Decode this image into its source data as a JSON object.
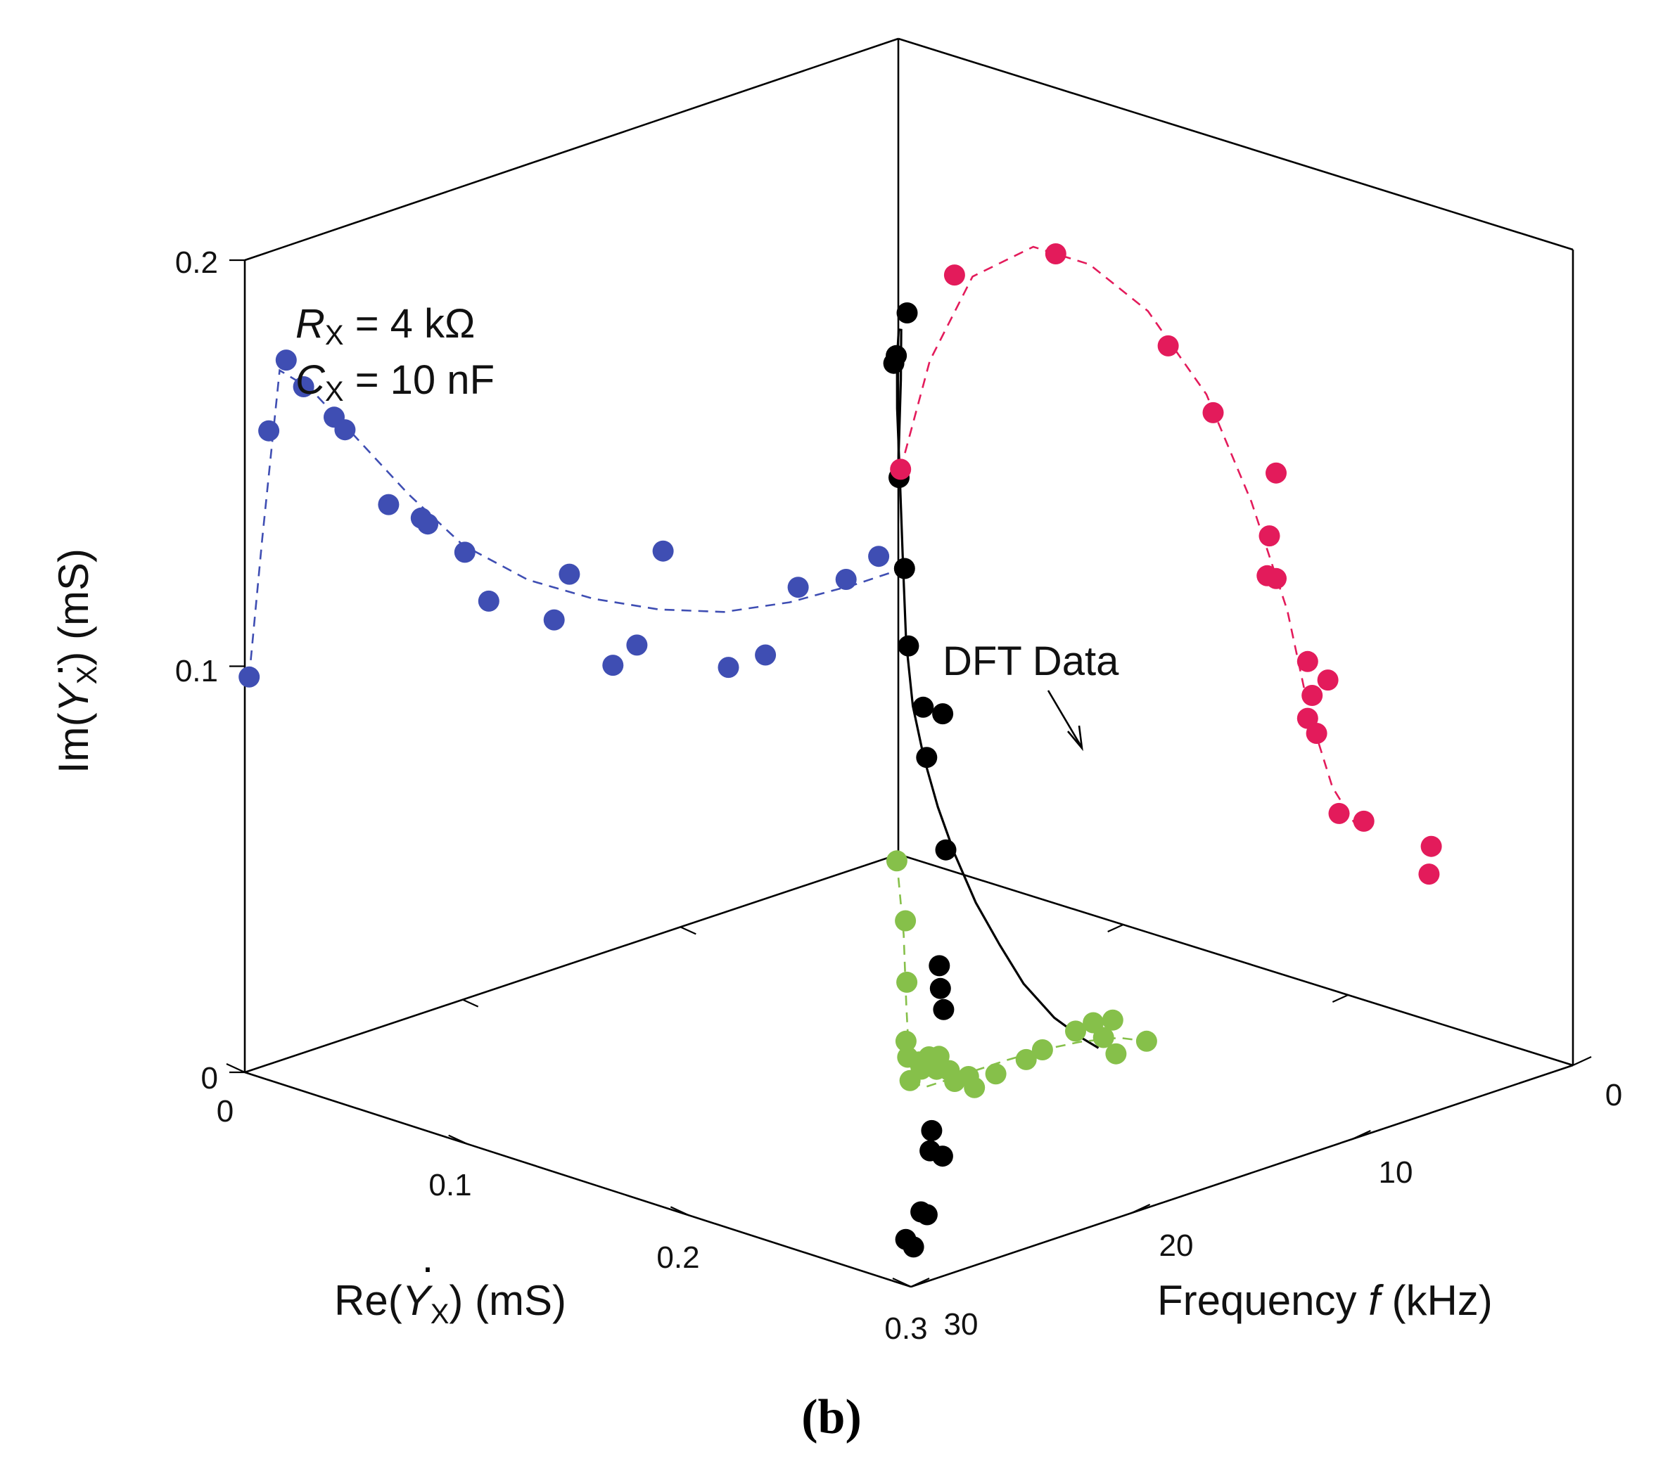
{
  "chart_data": {
    "type": "scatter",
    "projection": "3d",
    "panel_label": "(b)",
    "annotations": {
      "rx": "R",
      "rx_sub": "X",
      "rx_rest": " = 4 kΩ",
      "cx": "C",
      "cx_sub": "X",
      "cx_rest": " = 10 nF",
      "dft": "DFT Data"
    },
    "axes": {
      "re": {
        "label_pre": "Re(",
        "label_sym": "Y",
        "label_sub": "X",
        "label_post": ") (mS)",
        "range": [
          0,
          0.3
        ],
        "ticks": [
          "0",
          "0.1",
          "0.2",
          "0.3"
        ]
      },
      "im": {
        "label_pre": "Im(",
        "label_sym": "Y",
        "label_sub": "X",
        "label_post": ") (mS)",
        "range": [
          0,
          0.2
        ],
        "ticks": [
          "0",
          "0.1",
          "0.2"
        ]
      },
      "freq": {
        "label_pre": "Frequency ",
        "label_sym": "f",
        "label_post": " (kHz)",
        "range": [
          0,
          30
        ],
        "ticks": [
          "0",
          "10",
          "20",
          "30"
        ]
      }
    },
    "colors": {
      "dft": "#000000",
      "projection_re_f": "#86c04a",
      "projection_im_re": "#3f4eb3",
      "projection_im_f": "#e31b5b"
    },
    "series": [
      {
        "role": "dft",
        "note": "points are [Re(mS), Im(mS), f(kHz)]",
        "points": [
          [
            0.04,
            0.15,
            27.5
          ],
          [
            0.06,
            0.145,
            28.0
          ],
          [
            0.085,
            0.152,
            27.2
          ],
          [
            0.11,
            0.134,
            25.2
          ],
          [
            0.125,
            0.118,
            23.5
          ],
          [
            0.14,
            0.105,
            21.9
          ],
          [
            0.128,
            0.088,
            20.5
          ],
          [
            0.133,
            0.078,
            19.6
          ],
          [
            0.09,
            0.076,
            20.3
          ],
          [
            0.115,
            0.052,
            18.1
          ],
          [
            0.165,
            0.04,
            14.8
          ],
          [
            0.175,
            0.038,
            13.6
          ],
          [
            0.18,
            0.035,
            12.5
          ],
          [
            0.21,
            0.03,
            10.2
          ],
          [
            0.23,
            0.02,
            8.4
          ],
          [
            0.24,
            0.018,
            7.2
          ],
          [
            0.22,
            0.012,
            7.6
          ],
          [
            0.26,
            0.008,
            5.9
          ],
          [
            0.25,
            0.005,
            6.2
          ],
          [
            0.275,
            0.003,
            4.9
          ],
          [
            0.275,
            0.004,
            6.9
          ]
        ]
      },
      {
        "role": "dft-fit",
        "style": "solid",
        "points": [
          [
            0.004,
            0.095,
            29.9
          ],
          [
            0.015,
            0.123,
            29.2
          ],
          [
            0.03,
            0.141,
            28.6
          ],
          [
            0.055,
            0.15,
            27.9
          ],
          [
            0.08,
            0.152,
            27.0
          ],
          [
            0.1,
            0.147,
            26.0
          ],
          [
            0.118,
            0.136,
            24.6
          ],
          [
            0.132,
            0.122,
            23.3
          ],
          [
            0.141,
            0.106,
            22.2
          ],
          [
            0.143,
            0.092,
            21.0
          ],
          [
            0.14,
            0.08,
            19.5
          ],
          [
            0.134,
            0.068,
            17.8
          ],
          [
            0.125,
            0.056,
            16.0
          ],
          [
            0.112,
            0.043,
            14.0
          ],
          [
            0.096,
            0.031,
            12.0
          ],
          [
            0.08,
            0.02,
            10.2
          ],
          [
            0.06,
            0.01,
            8.0
          ],
          [
            0.04,
            0.003,
            6.2
          ],
          [
            0.03,
            0.0,
            5.3
          ]
        ]
      },
      {
        "role": "projection-re-f",
        "points": [
          [
            0.005,
            0,
            30
          ],
          [
            0.04,
            0,
            27.7
          ],
          [
            0.08,
            0,
            25.7
          ],
          [
            0.12,
            0,
            23.6
          ],
          [
            0.13,
            0,
            22.7
          ],
          [
            0.145,
            0,
            21.3
          ],
          [
            0.128,
            0,
            21.1
          ],
          [
            0.132,
            0,
            20.5
          ],
          [
            0.12,
            0,
            20.2
          ],
          [
            0.115,
            0,
            19.1
          ],
          [
            0.125,
            0,
            18.7
          ],
          [
            0.12,
            0,
            17.2
          ],
          [
            0.125,
            0,
            16.0
          ],
          [
            0.115,
            0,
            14.8
          ],
          [
            0.12,
            0,
            13.5
          ],
          [
            0.1,
            0,
            12.2
          ],
          [
            0.075,
            0,
            10.3
          ],
          [
            0.06,
            0,
            9.5
          ],
          [
            0.03,
            0,
            8.0
          ],
          [
            0.015,
            0,
            7.2
          ],
          [
            0.003,
            0,
            6.0
          ],
          [
            0.02,
            0,
            5.6
          ],
          [
            0.025,
            0,
            3.7
          ],
          [
            0.0,
            0,
            2.5
          ]
        ]
      },
      {
        "role": "projection-re-f-fit",
        "style": "dashed",
        "points": [
          [
            0.005,
            0,
            30
          ],
          [
            0.05,
            0,
            27.5
          ],
          [
            0.095,
            0,
            25.0
          ],
          [
            0.13,
            0,
            22.5
          ],
          [
            0.145,
            0,
            20.5
          ],
          [
            0.142,
            0,
            19.0
          ],
          [
            0.128,
            0,
            17.0
          ],
          [
            0.108,
            0,
            14.5
          ],
          [
            0.085,
            0,
            12.0
          ],
          [
            0.06,
            0,
            9.5
          ],
          [
            0.035,
            0,
            7.0
          ],
          [
            0.012,
            0,
            4.5
          ],
          [
            0.0,
            0,
            2.5
          ]
        ]
      },
      {
        "role": "projection-im-re",
        "points": [
          [
            0.002,
            0.097,
            30
          ],
          [
            0.011,
            0.156,
            30
          ],
          [
            0.019,
            0.172,
            30
          ],
          [
            0.027,
            0.164,
            30
          ],
          [
            0.041,
            0.154,
            30
          ],
          [
            0.046,
            0.15,
            30
          ],
          [
            0.066,
            0.128,
            30
          ],
          [
            0.081,
            0.122,
            30
          ],
          [
            0.084,
            0.12,
            30
          ],
          [
            0.101,
            0.11,
            30
          ],
          [
            0.112,
            0.096,
            30
          ],
          [
            0.142,
            0.086,
            30
          ],
          [
            0.149,
            0.096,
            30
          ],
          [
            0.169,
            0.07,
            30
          ],
          [
            0.18,
            0.073,
            30
          ],
          [
            0.192,
            0.094,
            30
          ],
          [
            0.222,
            0.06,
            30
          ],
          [
            0.239,
            0.06,
            30
          ],
          [
            0.254,
            0.074,
            30
          ],
          [
            0.276,
            0.072,
            30
          ],
          [
            0.291,
            0.075,
            30
          ]
        ]
      },
      {
        "role": "projection-im-re-fit",
        "style": "dashed",
        "points": [
          [
            0.002,
            0.097,
            30
          ],
          [
            0.008,
            0.13,
            30
          ],
          [
            0.016,
            0.17,
            30
          ],
          [
            0.03,
            0.163,
            30
          ],
          [
            0.05,
            0.148,
            30
          ],
          [
            0.075,
            0.129,
            30
          ],
          [
            0.1,
            0.112,
            30
          ],
          [
            0.13,
            0.098,
            30
          ],
          [
            0.16,
            0.088,
            30
          ],
          [
            0.19,
            0.08,
            30
          ],
          [
            0.22,
            0.074,
            30
          ],
          [
            0.25,
            0.071,
            30
          ],
          [
            0.28,
            0.07,
            30
          ],
          [
            0.3,
            0.07,
            30
          ]
        ]
      },
      {
        "role": "projection-im-f",
        "points": [
          [
            0,
            0.095,
            29.9
          ],
          [
            0,
            0.147,
            27.5
          ],
          [
            0,
            0.16,
            23.0
          ],
          [
            0,
            0.146,
            18.0
          ],
          [
            0,
            0.133,
            16.0
          ],
          [
            0,
            0.123,
            13.2
          ],
          [
            0,
            0.107,
            13.5
          ],
          [
            0,
            0.097,
            13.6
          ],
          [
            0,
            0.097,
            13.2
          ],
          [
            0,
            0.079,
            11.8
          ],
          [
            0,
            0.076,
            10.9
          ],
          [
            0,
            0.071,
            11.6
          ],
          [
            0,
            0.065,
            11.8
          ],
          [
            0,
            0.062,
            11.4
          ],
          [
            0,
            0.044,
            10.4
          ],
          [
            0,
            0.044,
            9.3
          ],
          [
            0,
            0.043,
            6.3
          ],
          [
            0,
            0.036,
            6.4
          ]
        ]
      },
      {
        "role": "projection-im-f-fit",
        "style": "dashed",
        "points": [
          [
            0,
            0.095,
            29.9
          ],
          [
            0,
            0.124,
            28.6
          ],
          [
            0,
            0.148,
            26.7
          ],
          [
            0,
            0.16,
            24.0
          ],
          [
            0,
            0.16,
            21.5
          ],
          [
            0,
            0.153,
            18.9
          ],
          [
            0,
            0.137,
            16.3
          ],
          [
            0,
            0.114,
            14.3
          ],
          [
            0,
            0.09,
            12.7
          ],
          [
            0,
            0.066,
            11.7
          ],
          [
            0,
            0.05,
            10.7
          ],
          [
            0,
            0.042,
            9.6
          ]
        ]
      }
    ]
  }
}
